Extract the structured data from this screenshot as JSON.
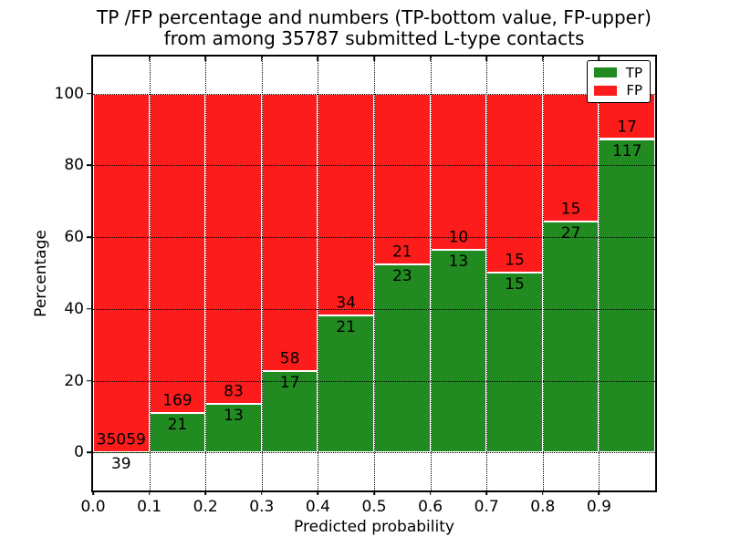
{
  "title": {
    "line1": "TP /FP percentage and numbers (TP-bottom value, FP-upper)",
    "line2": "from among 35787 submitted L-type contacts"
  },
  "axes": {
    "xlabel": "Predicted probability",
    "ylabel": "Percentage"
  },
  "legend": {
    "position": "upper-right",
    "items": [
      {
        "label": "TP",
        "color": "#218a21"
      },
      {
        "label": "FP",
        "color": "#fc1c1c"
      }
    ]
  },
  "chart_data": {
    "type": "bar",
    "stacked": true,
    "normalized": "percent-of-bin-total",
    "title": "TP /FP percentage and numbers (TP-bottom value, FP-upper) from among 35787 submitted L-type contacts",
    "xlabel": "Predicted probability",
    "ylabel": "Percentage",
    "total_contacts": 35787,
    "bin_edges": [
      0.0,
      0.1,
      0.2,
      0.3,
      0.4,
      0.5,
      0.6,
      0.7,
      0.8,
      0.9,
      1.0
    ],
    "categories": [
      "0.0-0.1",
      "0.1-0.2",
      "0.2-0.3",
      "0.3-0.4",
      "0.4-0.5",
      "0.5-0.6",
      "0.6-0.7",
      "0.7-0.8",
      "0.8-0.9",
      "0.9-1.0"
    ],
    "series": [
      {
        "name": "TP",
        "color": "#218a21",
        "values": [
          39,
          21,
          13,
          17,
          21,
          23,
          13,
          15,
          27,
          117
        ]
      },
      {
        "name": "FP",
        "color": "#fc1c1c",
        "values": [
          35059,
          169,
          83,
          58,
          34,
          21,
          10,
          15,
          15,
          17
        ]
      }
    ],
    "xlim": [
      0.0,
      1.0
    ],
    "ylim": [
      -10.6,
      110.3
    ],
    "yticks": [
      0,
      20,
      40,
      60,
      80,
      100
    ],
    "xticks": [
      0.0,
      0.1,
      0.2,
      0.3,
      0.4,
      0.5,
      0.6,
      0.7,
      0.8,
      0.9
    ],
    "xtick_labels": [
      "0.0",
      "0.1",
      "0.2",
      "0.3",
      "0.4",
      "0.5",
      "0.6",
      "0.7",
      "0.8",
      "0.9"
    ],
    "grid": "dotted black, drawn above bars",
    "bar_edge_color": "#ffffff",
    "legend_position": "upper right"
  }
}
